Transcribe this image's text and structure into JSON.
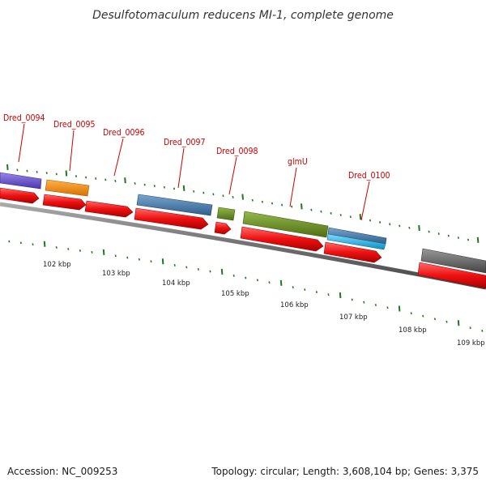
{
  "title": "Desulfotomaculum reducens MI-1, complete genome",
  "footer": {
    "accession": "Accession: NC_009253",
    "summary": "Topology: circular; Length: 3,608,104 bp; Genes: 3,375"
  },
  "colors": {
    "red": "#ee1111",
    "backbone": "#7a7a7a",
    "tick": "#1e7a1e",
    "label": "#cc0000"
  },
  "gene_labels": [
    {
      "text": "Dred_0094"
    },
    {
      "text": "Dred_0095"
    },
    {
      "text": "Dred_0096"
    },
    {
      "text": "Dred_0097"
    },
    {
      "text": "Dred_0098"
    },
    {
      "text": "glmU"
    },
    {
      "text": "Dred_0100"
    }
  ],
  "kbp_labels": [
    "102 kbp",
    "103 kbp",
    "104 kbp",
    "105 kbp",
    "106 kbp",
    "107 kbp",
    "108 kbp",
    "109 kbp"
  ],
  "cog_colors": [
    "#6a4fc8",
    "#ff8c00",
    "#4a7fb0",
    "#6b8e23",
    "#2ab0e0",
    "#666666"
  ]
}
